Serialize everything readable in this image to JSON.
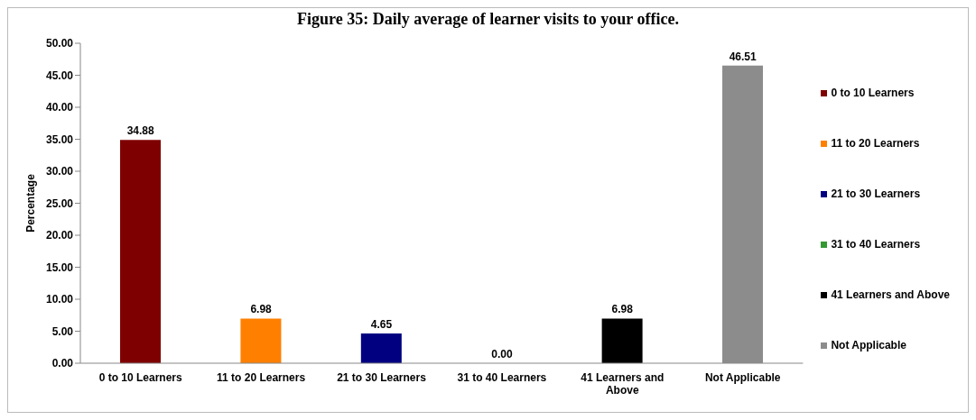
{
  "chart_data": {
    "type": "bar",
    "title": "Figure 35: Daily average of learner visits to your office.",
    "ylabel": "Percentage",
    "categories": [
      "0 to 10 Learners",
      "11 to 20 Learners",
      "21 to 30 Learners",
      "31 to 40 Learners",
      "41 Learners and Above",
      "Not Applicable"
    ],
    "stacked": true,
    "series": [
      {
        "name": "0 to 10 Learners",
        "color": "#7f0000",
        "values": [
          34.88,
          null,
          null,
          null,
          null,
          null
        ],
        "value_labels": [
          "34.88",
          null,
          null,
          null,
          null,
          null
        ]
      },
      {
        "name": "11 to 20 Learners",
        "color": "#ff8000",
        "values": [
          null,
          6.98,
          null,
          null,
          null,
          null
        ],
        "value_labels": [
          null,
          "6.98",
          null,
          null,
          null,
          null
        ]
      },
      {
        "name": "21 to 30 Learners",
        "color": "#000080",
        "values": [
          null,
          null,
          4.65,
          null,
          null,
          null
        ],
        "value_labels": [
          null,
          null,
          "4.65",
          null,
          null,
          null
        ]
      },
      {
        "name": "31 to 40 Learners",
        "color": "#339933",
        "values": [
          null,
          null,
          null,
          0,
          null,
          null
        ],
        "value_labels": [
          null,
          null,
          null,
          "0.00",
          null,
          null
        ]
      },
      {
        "name": "41 Learners and Above",
        "color": "#000000",
        "values": [
          null,
          null,
          null,
          null,
          6.98,
          null
        ],
        "value_labels": [
          null,
          null,
          null,
          null,
          "6.98",
          null
        ]
      },
      {
        "name": "Not Applicable",
        "color": "#8c8c8c",
        "values": [
          null,
          null,
          null,
          null,
          null,
          46.51
        ],
        "value_labels": [
          null,
          null,
          null,
          null,
          null,
          "46.51"
        ]
      }
    ],
    "ylim": [
      0,
      50
    ],
    "yticks": [
      {
        "value": 0,
        "label": "0.00"
      },
      {
        "value": 5,
        "label": "5.00"
      },
      {
        "value": 10,
        "label": "10.00"
      },
      {
        "value": 15,
        "label": "15.00"
      },
      {
        "value": 20,
        "label": "20.00"
      },
      {
        "value": 25,
        "label": "25.00"
      },
      {
        "value": 30,
        "label": "30.00"
      },
      {
        "value": 35,
        "label": "35.00"
      },
      {
        "value": 40,
        "label": "40.00"
      },
      {
        "value": 45,
        "label": "45.00"
      },
      {
        "value": 50,
        "label": "50.00"
      }
    ],
    "legend": "right",
    "grid": false
  }
}
